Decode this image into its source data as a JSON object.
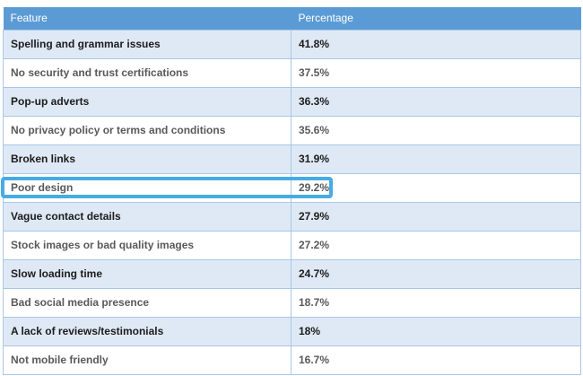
{
  "table": {
    "columns": [
      "Feature",
      "Percentage"
    ],
    "rows": [
      {
        "feature": "Spelling and grammar issues",
        "percentage": "41.8%"
      },
      {
        "feature": "No security and trust certifications",
        "percentage": "37.5%"
      },
      {
        "feature": "Pop-up adverts",
        "percentage": "36.3%"
      },
      {
        "feature": "No privacy policy or terms and conditions",
        "percentage": "35.6%"
      },
      {
        "feature": "Broken links",
        "percentage": "31.9%"
      },
      {
        "feature": "Poor design",
        "percentage": "29.2%"
      },
      {
        "feature": "Vague contact details",
        "percentage": "27.9%"
      },
      {
        "feature": "Stock images or bad quality images",
        "percentage": "27.2%"
      },
      {
        "feature": "Slow loading time",
        "percentage": "24.7%"
      },
      {
        "feature": "Bad social media presence",
        "percentage": "18.7%"
      },
      {
        "feature": "A lack of reviews/testimonials",
        "percentage": "18%"
      },
      {
        "feature": "Not mobile friendly",
        "percentage": "16.7%"
      }
    ],
    "highlighted_feature": "Poor design"
  },
  "colors": {
    "header_bg": "#5b9bd5",
    "header_text": "#ffffff",
    "band_bg": "#dfe9f5",
    "white_bg": "#ffffff",
    "border": "#a9c7e7",
    "text_dark": "#1c1c1c",
    "text_gray": "#595959",
    "highlight": "#47abe4"
  }
}
